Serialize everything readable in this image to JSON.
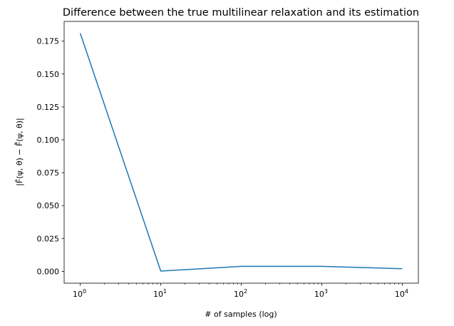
{
  "chart_data": {
    "type": "line",
    "title": "Difference between the true multilinear relaxation and its estimation",
    "xlabel": "# of samples (log)",
    "ylabel": "|F̃(ψ, θ) − F̂̃(ψ, θ)|",
    "xscale": "log",
    "xlim": [
      1,
      10000
    ],
    "ylim": [
      -0.009,
      0.19
    ],
    "grid": false,
    "line_color": "#1f77b4",
    "xticks": [
      {
        "value": 1,
        "base": "10",
        "exp": "0"
      },
      {
        "value": 10,
        "base": "10",
        "exp": "1"
      },
      {
        "value": 100,
        "base": "10",
        "exp": "2"
      },
      {
        "value": 1000,
        "base": "10",
        "exp": "3"
      },
      {
        "value": 10000,
        "base": "10",
        "exp": "4"
      }
    ],
    "yticks": [
      "0.000",
      "0.025",
      "0.050",
      "0.075",
      "0.100",
      "0.125",
      "0.150",
      "0.175"
    ],
    "series": [
      {
        "x": [
          1,
          10,
          100,
          1000,
          10000
        ],
        "y": [
          0.181,
          0.0002,
          0.0038,
          0.0038,
          0.002
        ]
      }
    ]
  }
}
